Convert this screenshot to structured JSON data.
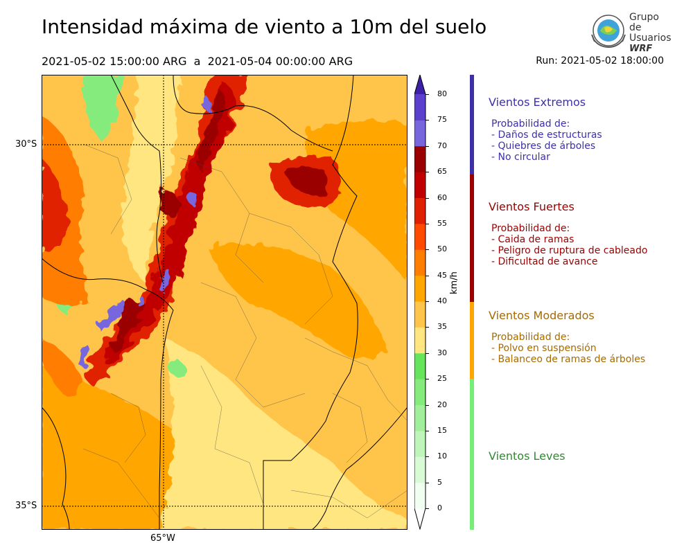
{
  "header": {
    "title": "Intensidad máxima de viento a 10m del suelo",
    "period": "2021-05-02 15:00:00 ARG  a  2021-05-04 00:00:00 ARG",
    "run": "Run: 2021-05-02 18:00:00"
  },
  "logo": {
    "line1": "Grupo de",
    "line2": "Usuarios",
    "line3": "WRF"
  },
  "map": {
    "lat_labels": [
      "30°S",
      "35°S"
    ],
    "lon_labels": [
      "65°W"
    ],
    "lat_range": [
      -35.3,
      -29.0
    ],
    "lon_range": [
      -66.7,
      -61.6
    ],
    "grid_lats": [
      -30,
      -35
    ],
    "grid_lons": [
      -65
    ],
    "field": "wind_gust_10m_max",
    "units": "km/h"
  },
  "colorbar": {
    "unit_label": "km/h",
    "ticks": [
      "0",
      "5",
      "10",
      "15",
      "20",
      "25",
      "30",
      "35",
      "40",
      "45",
      "50",
      "55",
      "60",
      "65",
      "70",
      "75",
      "80"
    ],
    "levels": [
      0,
      5,
      10,
      15,
      20,
      25,
      30,
      35,
      40,
      45,
      50,
      55,
      60,
      65,
      70,
      75,
      80
    ],
    "colors": [
      "#f0fff0",
      "#d8fbd6",
      "#bff4bb",
      "#a1ee9b",
      "#84eb7c",
      "#66e55c",
      "#ffe680",
      "#ffc44a",
      "#ffa600",
      "#ff7d00",
      "#ff4a00",
      "#e02000",
      "#c00000",
      "#9a0000",
      "#7766dd",
      "#5a40cc",
      "#4b2cb3"
    ],
    "over_color": "#3d1fa8",
    "under_color": "#ffffff"
  },
  "categories": [
    {
      "title": "Vientos Extremos",
      "color": "#3d2fa8",
      "bar_color": "#3d2fa8",
      "lines": [
        "Probabilidad de:",
        "- Daños de estructuras",
        "- Quiebres de árboles",
        "- No circular"
      ]
    },
    {
      "title": "Vientos Fuertes",
      "color": "#9a0000",
      "bar_color": "#990000",
      "lines": [
        "Probabilidad de:",
        "- Caida de ramas",
        "- Peligro de ruptura de cableado",
        "- Dificultad de avance"
      ]
    },
    {
      "title": "Vientos Moderados",
      "color": "#a66a00",
      "bar_color": "#ffa500",
      "lines": [
        "Probabilidad de:",
        "- Polvo en suspensión",
        "- Balanceo de ramas de árboles"
      ]
    },
    {
      "title": "Vientos Leves",
      "color": "#2e8b2e",
      "bar_color": "#77ee77",
      "lines": []
    }
  ]
}
